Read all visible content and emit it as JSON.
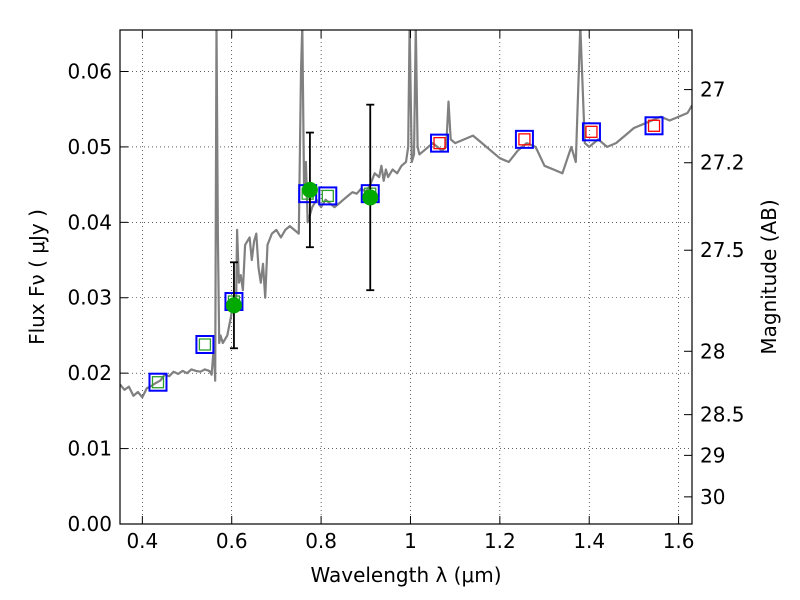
{
  "chart_data": {
    "type": "scatter",
    "xlabel": "Wavelength  λ (μm)",
    "ylabel": "Flux  Fν  ( μJy )",
    "y2label": "Magnitude (AB)",
    "xlim": [
      0.35,
      1.63
    ],
    "ylim": [
      0.0,
      0.0655
    ],
    "grid": true,
    "x_ticks": [
      0.4,
      0.6,
      0.8,
      1.0,
      1.2,
      1.4,
      1.6
    ],
    "x_tick_labels": [
      "0.4",
      "0.6",
      "0.8",
      "1",
      "1.2",
      "1.4",
      "1.6"
    ],
    "y_ticks": [
      0.0,
      0.01,
      0.02,
      0.03,
      0.04,
      0.05,
      0.06
    ],
    "y_tick_labels": [
      "0.00",
      "0.01",
      "0.02",
      "0.03",
      "0.04",
      "0.05",
      "0.06"
    ],
    "y2_ticks": [
      {
        "label": "27",
        "flux": 0.0576
      },
      {
        "label": "27.2",
        "flux": 0.0479
      },
      {
        "label": "27.5",
        "flux": 0.0363
      },
      {
        "label": "28",
        "flux": 0.0229
      },
      {
        "label": "28.5",
        "flux": 0.0145
      },
      {
        "label": "29",
        "flux": 0.0091
      },
      {
        "label": "30",
        "flux": 0.0036
      }
    ],
    "spectrum": {
      "color": "#808080",
      "points": [
        [
          0.35,
          0.0185
        ],
        [
          0.36,
          0.0178
        ],
        [
          0.37,
          0.0182
        ],
        [
          0.38,
          0.017
        ],
        [
          0.39,
          0.0175
        ],
        [
          0.4,
          0.0168
        ],
        [
          0.41,
          0.018
        ],
        [
          0.42,
          0.0183
        ],
        [
          0.43,
          0.0187
        ],
        [
          0.44,
          0.019
        ],
        [
          0.45,
          0.0198
        ],
        [
          0.46,
          0.0196
        ],
        [
          0.47,
          0.0202
        ],
        [
          0.48,
          0.0199
        ],
        [
          0.49,
          0.0203
        ],
        [
          0.5,
          0.02
        ],
        [
          0.51,
          0.0205
        ],
        [
          0.52,
          0.0203
        ],
        [
          0.53,
          0.0202
        ],
        [
          0.54,
          0.0205
        ],
        [
          0.55,
          0.0203
        ],
        [
          0.555,
          0.0198
        ],
        [
          0.56,
          0.0235
        ],
        [
          0.563,
          0.019
        ],
        [
          0.566,
          0.066
        ],
        [
          0.569,
          0.038
        ],
        [
          0.572,
          0.024
        ],
        [
          0.575,
          0.025
        ],
        [
          0.58,
          0.024
        ],
        [
          0.59,
          0.025
        ],
        [
          0.6,
          0.028
        ],
        [
          0.605,
          0.0295
        ],
        [
          0.61,
          0.03
        ],
        [
          0.612,
          0.039
        ],
        [
          0.616,
          0.032
        ],
        [
          0.62,
          0.033
        ],
        [
          0.625,
          0.031
        ],
        [
          0.63,
          0.037
        ],
        [
          0.64,
          0.038
        ],
        [
          0.645,
          0.035
        ],
        [
          0.65,
          0.0375
        ],
        [
          0.655,
          0.0385
        ],
        [
          0.66,
          0.034
        ],
        [
          0.665,
          0.032
        ],
        [
          0.67,
          0.0345
        ],
        [
          0.675,
          0.03
        ],
        [
          0.68,
          0.037
        ],
        [
          0.69,
          0.0385
        ],
        [
          0.7,
          0.039
        ],
        [
          0.71,
          0.038
        ],
        [
          0.72,
          0.039
        ],
        [
          0.73,
          0.0395
        ],
        [
          0.74,
          0.039
        ],
        [
          0.75,
          0.0385
        ],
        [
          0.755,
          0.06
        ],
        [
          0.758,
          0.066
        ],
        [
          0.762,
          0.044
        ],
        [
          0.766,
          0.048
        ],
        [
          0.77,
          0.04
        ],
        [
          0.78,
          0.042
        ],
        [
          0.79,
          0.043
        ],
        [
          0.8,
          0.042
        ],
        [
          0.81,
          0.043
        ],
        [
          0.82,
          0.0425
        ],
        [
          0.83,
          0.042
        ],
        [
          0.84,
          0.0425
        ],
        [
          0.85,
          0.043
        ],
        [
          0.86,
          0.0435
        ],
        [
          0.87,
          0.044
        ],
        [
          0.88,
          0.0438
        ],
        [
          0.89,
          0.0445
        ],
        [
          0.9,
          0.044
        ],
        [
          0.905,
          0.0445
        ],
        [
          0.91,
          0.045
        ],
        [
          0.92,
          0.0465
        ],
        [
          0.93,
          0.046
        ],
        [
          0.935,
          0.0475
        ],
        [
          0.94,
          0.0455
        ],
        [
          0.945,
          0.047
        ],
        [
          0.95,
          0.046
        ],
        [
          0.96,
          0.047
        ],
        [
          0.97,
          0.0465
        ],
        [
          0.98,
          0.0475
        ],
        [
          0.99,
          0.048
        ],
        [
          0.995,
          0.05
        ],
        [
          0.998,
          0.066
        ],
        [
          1.003,
          0.048
        ],
        [
          1.008,
          0.049
        ],
        [
          1.012,
          0.066
        ],
        [
          1.016,
          0.05
        ],
        [
          1.02,
          0.049
        ],
        [
          1.03,
          0.0495
        ],
        [
          1.04,
          0.05
        ],
        [
          1.05,
          0.0505
        ],
        [
          1.06,
          0.05
        ],
        [
          1.07,
          0.0495
        ],
        [
          1.08,
          0.05
        ],
        [
          1.085,
          0.056
        ],
        [
          1.09,
          0.051
        ],
        [
          1.1,
          0.0505
        ],
        [
          1.12,
          0.051
        ],
        [
          1.14,
          0.0515
        ],
        [
          1.16,
          0.0505
        ],
        [
          1.18,
          0.0495
        ],
        [
          1.2,
          0.0485
        ],
        [
          1.22,
          0.048
        ],
        [
          1.24,
          0.0495
        ],
        [
          1.26,
          0.0505
        ],
        [
          1.28,
          0.05
        ],
        [
          1.3,
          0.0475
        ],
        [
          1.32,
          0.047
        ],
        [
          1.34,
          0.0465
        ],
        [
          1.36,
          0.05
        ],
        [
          1.37,
          0.048
        ],
        [
          1.38,
          0.066
        ],
        [
          1.39,
          0.0505
        ],
        [
          1.4,
          0.05
        ],
        [
          1.42,
          0.051
        ],
        [
          1.44,
          0.05
        ],
        [
          1.46,
          0.0505
        ],
        [
          1.48,
          0.0515
        ],
        [
          1.5,
          0.0525
        ],
        [
          1.52,
          0.053
        ],
        [
          1.54,
          0.0535
        ],
        [
          1.56,
          0.054
        ],
        [
          1.58,
          0.0535
        ],
        [
          1.6,
          0.054
        ],
        [
          1.62,
          0.0545
        ],
        [
          1.63,
          0.0555
        ]
      ]
    },
    "series": [
      {
        "marker": "open-square",
        "stroke": "#0000ff",
        "inner": "#2ca02c",
        "points": [
          [
            0.435,
            0.0188
          ],
          [
            0.54,
            0.0238
          ],
          [
            0.605,
            0.0295
          ],
          [
            0.77,
            0.0438
          ],
          [
            0.815,
            0.0435
          ],
          [
            0.91,
            0.0438
          ]
        ]
      },
      {
        "marker": "open-square",
        "stroke": "#0000ff",
        "inner": "#ff0000",
        "points": [
          [
            1.065,
            0.0505
          ],
          [
            1.255,
            0.051
          ],
          [
            1.405,
            0.052
          ],
          [
            1.545,
            0.0528
          ]
        ]
      },
      {
        "marker": "filled-circle",
        "color": "#00aa00",
        "points": [
          {
            "x": 0.605,
            "y": 0.029,
            "err": 0.0057
          },
          {
            "x": 0.775,
            "y": 0.0443,
            "err": 0.0076
          },
          {
            "x": 0.91,
            "y": 0.0433,
            "err": 0.0123
          }
        ]
      }
    ]
  }
}
